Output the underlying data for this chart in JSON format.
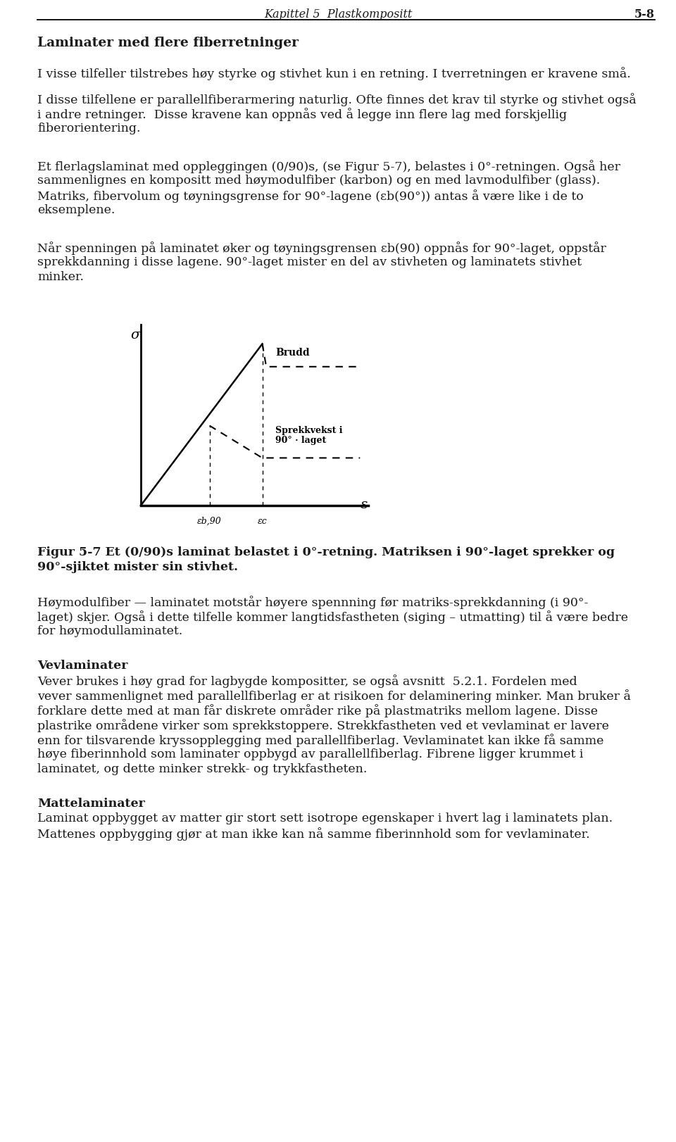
{
  "page_header_center": "Kapittel 5  Plastkompositt",
  "page_header_right": "5-8",
  "section_title": "Laminater med flere fiberretninger",
  "p1": "I visse tilfeller tilstrebes høy styrke og stivhet kun i en retning. I tverretningen er kravene små.",
  "p2a": "I disse tilfellene er parallellfiberarmering naturlig. Ofte finnes det krav til styrke og stivhet også",
  "p2b": "i andre retninger.  Disse kravene kan oppnås ved å legge inn flere lag med forskjellig",
  "p2c": "fiberorientering.",
  "p3a": "Et flerlagslaminat med oppleggingen (0/90)s, (se Figur 5-7), belastes i 0°-retningen. Også her",
  "p3b": "sammenlignes en kompositt med høymodulfiber (karbon) og en med lavmodulfiber (glass).",
  "p3c": "Matriks, fibervolum og tøyningsgrense for 90°-lagene (εb(90°)) antas å være like i de to",
  "p3d": "eksemplene.",
  "p4a": "Når spenningen på laminatet øker og tøyningsgrensen εb(90) oppnås for 90°-laget, oppstår",
  "p4b": "sprekkdanning i disse lagene. 90°-laget mister en del av stivheten og laminatets stivhet",
  "p4c": "minker.",
  "fig_cap1": "Figur 5-7 Et (0/90)s laminat belastet i 0°-retning. Matriksen i 90°-laget sprekker og",
  "fig_cap2": "90°-sjiktet mister sin stivhet.",
  "p5a": "Høymodulfiber — laminatet motstår høyere spennning før matriks-sprekkdanning (i 90°-",
  "p5b": "laget) skjer. Også i dette tilfelle kommer langtidsfastheten (siging – utmatting) til å være bedre",
  "p5c": "for høymodullaminatet.",
  "sec2": "Vevlaminater",
  "p6a": "Vever brukes i høy grad for lagbygde kompositter, se også avsnitt  5.2.1. Fordelen med",
  "p6b": "vever sammenlignet med parallellfiberlag er at risikoen for delaminering minker. Man bruker å",
  "p6c": "forklare dette med at man får diskrete områder rike på plastmatriks mellom lagene. Disse",
  "p6d": "plastrike områdene virker som sprekkstoppere. Strekkfastheten ved et vevlaminat er lavere",
  "p6e": "enn for tilsvarende kryssopplegging med parallellfiberlag. Vevlaminatet kan ikke få samme",
  "p6f": "høye fiberinnhold som laminater oppbygd av parallellfiberlag. Fibrene ligger krummet i",
  "p6g": "laminatet, og dette minker strekk- og trykkfastheten.",
  "sec3": "Mattelaminater",
  "p7a": "Laminat oppbygget av matter gir stort sett isotrope egenskaper i hvert lag i laminatets plan.",
  "p7b": "Mattenes oppbygging gjør at man ikke kan nå samme fiberinnhold som for vevlaminater.",
  "background_color": "#ffffff",
  "text_color": "#1a1a1a",
  "font_size_body": 12.5,
  "font_size_header": 11.5,
  "font_size_section": 13.5,
  "graph_sigma_label": "σ",
  "graph_epsilon_label": "ε",
  "graph_brudd": "Brudd",
  "graph_sprekk": "Sprekkvekst i\n90° · laget",
  "graph_eb90": "εb,90",
  "graph_ec": "εc"
}
